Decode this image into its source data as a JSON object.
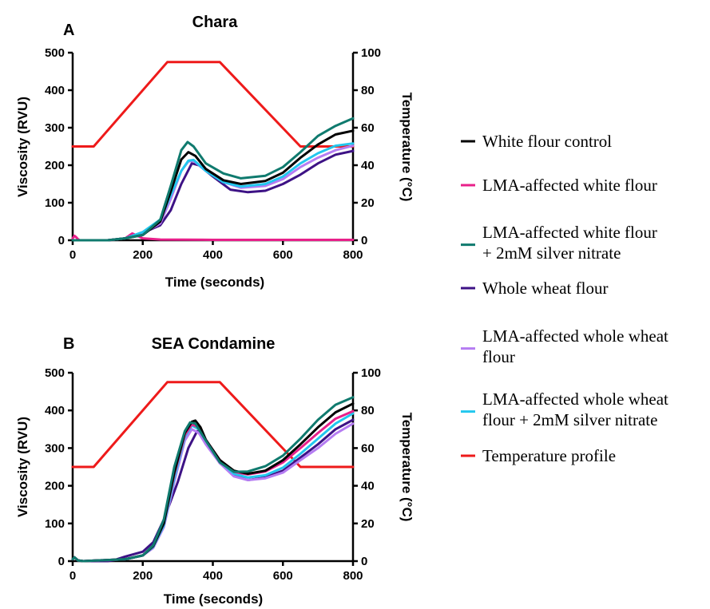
{
  "legend": {
    "entries": [
      {
        "key": "white_control",
        "lines": [
          "White flour control"
        ],
        "color": "#000000"
      },
      {
        "key": "lma_white",
        "lines": [
          "LMA-affected white flour"
        ],
        "color": "#e8208a"
      },
      {
        "key": "lma_white_silver",
        "lines": [
          "LMA-affected white flour",
          "+ 2mM silver nitrate"
        ],
        "color": "#0f7a6e"
      },
      {
        "key": "whole_wheat",
        "lines": [
          "Whole wheat flour"
        ],
        "color": "#3d1285"
      },
      {
        "key": "lma_whole",
        "lines": [
          "LMA-affected whole wheat",
          "flour"
        ],
        "color": "#b57cf2"
      },
      {
        "key": "lma_whole_silver",
        "lines": [
          "LMA-affected whole wheat",
          "flour + 2mM silver nitrate"
        ],
        "color": "#22c7ee"
      },
      {
        "key": "temperature",
        "lines": [
          "Temperature profile"
        ],
        "color": "#ee1a1a"
      }
    ]
  },
  "chart_data": [
    {
      "type": "line",
      "panel_label": "A",
      "title": "Chara",
      "xlabel": "Time (seconds)",
      "ylabel": "Viscosity (RVU)",
      "y2label": "Temperature (°C)",
      "xlim": [
        0,
        800
      ],
      "ylim": [
        0,
        500
      ],
      "y2lim": [
        0,
        100
      ],
      "xticks": [
        0,
        200,
        400,
        600,
        800
      ],
      "yticks": [
        0,
        100,
        200,
        300,
        400,
        500
      ],
      "y2ticks": [
        0,
        20,
        40,
        60,
        80,
        100
      ],
      "grid": false,
      "series": [
        {
          "key": "temperature",
          "axis": "right",
          "x": [
            0,
            60,
            270,
            420,
            650,
            800
          ],
          "values": [
            50,
            50,
            95,
            95,
            50,
            50
          ]
        },
        {
          "key": "lma_white",
          "axis": "left",
          "x": [
            0,
            5,
            10,
            15,
            20,
            100,
            150,
            170,
            180,
            200,
            250,
            400,
            800
          ],
          "values": [
            5,
            12,
            8,
            3,
            0,
            0,
            5,
            18,
            14,
            5,
            2,
            1,
            1
          ]
        },
        {
          "key": "whole_wheat",
          "axis": "left",
          "x": [
            0,
            100,
            150,
            200,
            250,
            280,
            310,
            340,
            360,
            400,
            450,
            500,
            550,
            600,
            650,
            700,
            750,
            800
          ],
          "values": [
            0,
            0,
            5,
            20,
            40,
            80,
            150,
            205,
            200,
            170,
            135,
            128,
            132,
            150,
            175,
            205,
            228,
            238
          ]
        },
        {
          "key": "lma_whole",
          "axis": "left",
          "x": [
            0,
            100,
            150,
            200,
            250,
            280,
            310,
            330,
            345,
            380,
            430,
            480,
            550,
            600,
            650,
            700,
            750,
            800
          ],
          "values": [
            0,
            0,
            5,
            18,
            45,
            110,
            185,
            210,
            212,
            185,
            155,
            140,
            145,
            163,
            195,
            220,
            240,
            252
          ]
        },
        {
          "key": "lma_whole_silver",
          "axis": "left",
          "x": [
            0,
            100,
            150,
            200,
            250,
            280,
            310,
            330,
            345,
            380,
            430,
            480,
            550,
            600,
            650,
            700,
            750,
            800
          ],
          "values": [
            0,
            0,
            5,
            22,
            55,
            120,
            185,
            212,
            214,
            185,
            155,
            143,
            150,
            170,
            205,
            232,
            252,
            258
          ]
        },
        {
          "key": "white_control",
          "axis": "left",
          "x": [
            0,
            100,
            150,
            200,
            250,
            280,
            310,
            330,
            350,
            380,
            430,
            480,
            550,
            600,
            650,
            700,
            750,
            800
          ],
          "values": [
            0,
            0,
            5,
            14,
            50,
            130,
            215,
            235,
            225,
            190,
            160,
            150,
            158,
            180,
            220,
            255,
            282,
            292
          ]
        },
        {
          "key": "lma_white_silver",
          "axis": "left",
          "x": [
            0,
            100,
            150,
            200,
            250,
            280,
            310,
            328,
            345,
            380,
            430,
            480,
            550,
            600,
            650,
            700,
            750,
            800
          ],
          "values": [
            0,
            0,
            5,
            14,
            55,
            145,
            240,
            262,
            250,
            205,
            178,
            165,
            172,
            195,
            235,
            278,
            305,
            325
          ]
        }
      ]
    },
    {
      "type": "line",
      "panel_label": "B",
      "title": "SEA Condamine",
      "xlabel": "Time (seconds)",
      "ylabel": "Viscosity (RVU)",
      "y2label": "Temperature (°C)",
      "xlim": [
        0,
        800
      ],
      "ylim": [
        0,
        500
      ],
      "y2lim": [
        0,
        100
      ],
      "xticks": [
        0,
        200,
        400,
        600,
        800
      ],
      "yticks": [
        0,
        100,
        200,
        300,
        400,
        500
      ],
      "y2ticks": [
        0,
        20,
        40,
        60,
        80,
        100
      ],
      "grid": false,
      "series": [
        {
          "key": "temperature",
          "axis": "right",
          "x": [
            0,
            60,
            270,
            420,
            650,
            800
          ],
          "values": [
            50,
            50,
            95,
            95,
            50,
            50
          ]
        },
        {
          "key": "whole_wheat",
          "axis": "left",
          "x": [
            0,
            5,
            15,
            30,
            100,
            120,
            150,
            200,
            230,
            260,
            300,
            330,
            355,
            380,
            420,
            460,
            500,
            550,
            600,
            650,
            700,
            750,
            800
          ],
          "values": [
            5,
            10,
            2,
            0,
            0,
            3,
            12,
            25,
            50,
            110,
            210,
            300,
            345,
            320,
            260,
            228,
            215,
            222,
            240,
            275,
            310,
            350,
            375
          ]
        },
        {
          "key": "lma_whole",
          "axis": "left",
          "x": [
            0,
            5,
            15,
            30,
            150,
            200,
            230,
            260,
            290,
            320,
            340,
            360,
            380,
            420,
            460,
            500,
            550,
            600,
            650,
            700,
            750,
            800
          ],
          "values": [
            5,
            10,
            2,
            0,
            5,
            15,
            35,
            90,
            210,
            320,
            350,
            340,
            310,
            260,
            225,
            215,
            220,
            235,
            268,
            300,
            338,
            365
          ]
        },
        {
          "key": "lma_whole_silver",
          "axis": "left",
          "x": [
            0,
            5,
            15,
            30,
            150,
            200,
            230,
            260,
            290,
            320,
            340,
            360,
            380,
            420,
            460,
            500,
            550,
            600,
            650,
            700,
            750,
            800
          ],
          "values": [
            5,
            10,
            2,
            0,
            5,
            15,
            38,
            95,
            220,
            330,
            360,
            350,
            320,
            265,
            232,
            222,
            228,
            248,
            285,
            325,
            365,
            392
          ]
        },
        {
          "key": "lma_white",
          "axis": "left",
          "x": [
            0,
            5,
            15,
            30,
            150,
            200,
            230,
            260,
            290,
            320,
            340,
            360,
            380,
            420,
            460,
            500,
            550,
            600,
            650,
            700,
            750,
            800
          ],
          "values": [
            5,
            10,
            2,
            0,
            5,
            15,
            40,
            100,
            230,
            335,
            363,
            355,
            322,
            268,
            237,
            230,
            238,
            262,
            300,
            340,
            378,
            398
          ]
        },
        {
          "key": "white_control",
          "axis": "left",
          "x": [
            0,
            5,
            15,
            30,
            150,
            200,
            230,
            260,
            290,
            320,
            340,
            350,
            365,
            380,
            420,
            460,
            500,
            550,
            600,
            650,
            700,
            750,
            800
          ],
          "values": [
            5,
            10,
            2,
            0,
            5,
            15,
            40,
            100,
            235,
            340,
            370,
            373,
            355,
            322,
            268,
            240,
            232,
            240,
            268,
            310,
            355,
            395,
            418
          ]
        },
        {
          "key": "lma_white_silver",
          "axis": "left",
          "x": [
            0,
            5,
            15,
            30,
            150,
            200,
            230,
            260,
            290,
            320,
            335,
            350,
            380,
            420,
            460,
            500,
            550,
            600,
            650,
            700,
            750,
            800
          ],
          "values": [
            5,
            10,
            2,
            0,
            5,
            15,
            42,
            110,
            250,
            345,
            368,
            365,
            320,
            262,
            237,
            238,
            252,
            280,
            325,
            375,
            415,
            435
          ]
        }
      ]
    }
  ]
}
